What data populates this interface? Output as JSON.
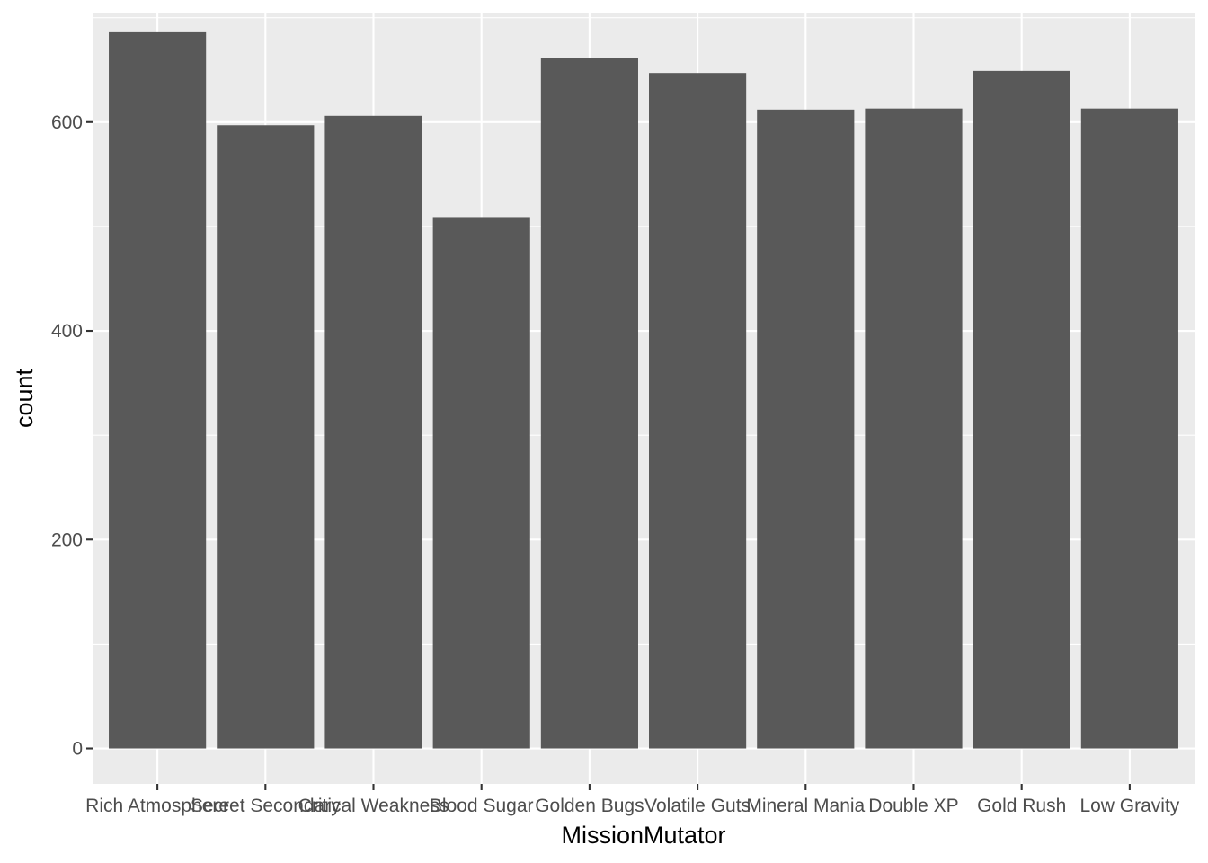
{
  "chart_data": {
    "type": "bar",
    "categories": [
      "Rich Atmosphere",
      "Secret Secondary",
      "Critical Weakness",
      "Blood Sugar",
      "Golden Bugs",
      "Volatile Guts",
      "Mineral Mania",
      "Double XP",
      "Gold Rush",
      "Low Gravity"
    ],
    "values": [
      686,
      597,
      606,
      509,
      661,
      647,
      612,
      613,
      649,
      613
    ],
    "xlabel": "MissionMutator",
    "ylabel": "count",
    "ylim": [
      -34,
      704
    ],
    "yticks": [
      0,
      200,
      400,
      600
    ],
    "grid": true,
    "colors": {
      "panel": "#ebebeb",
      "grid": "#ffffff",
      "bar": "#595959",
      "tick": "#333333"
    }
  }
}
